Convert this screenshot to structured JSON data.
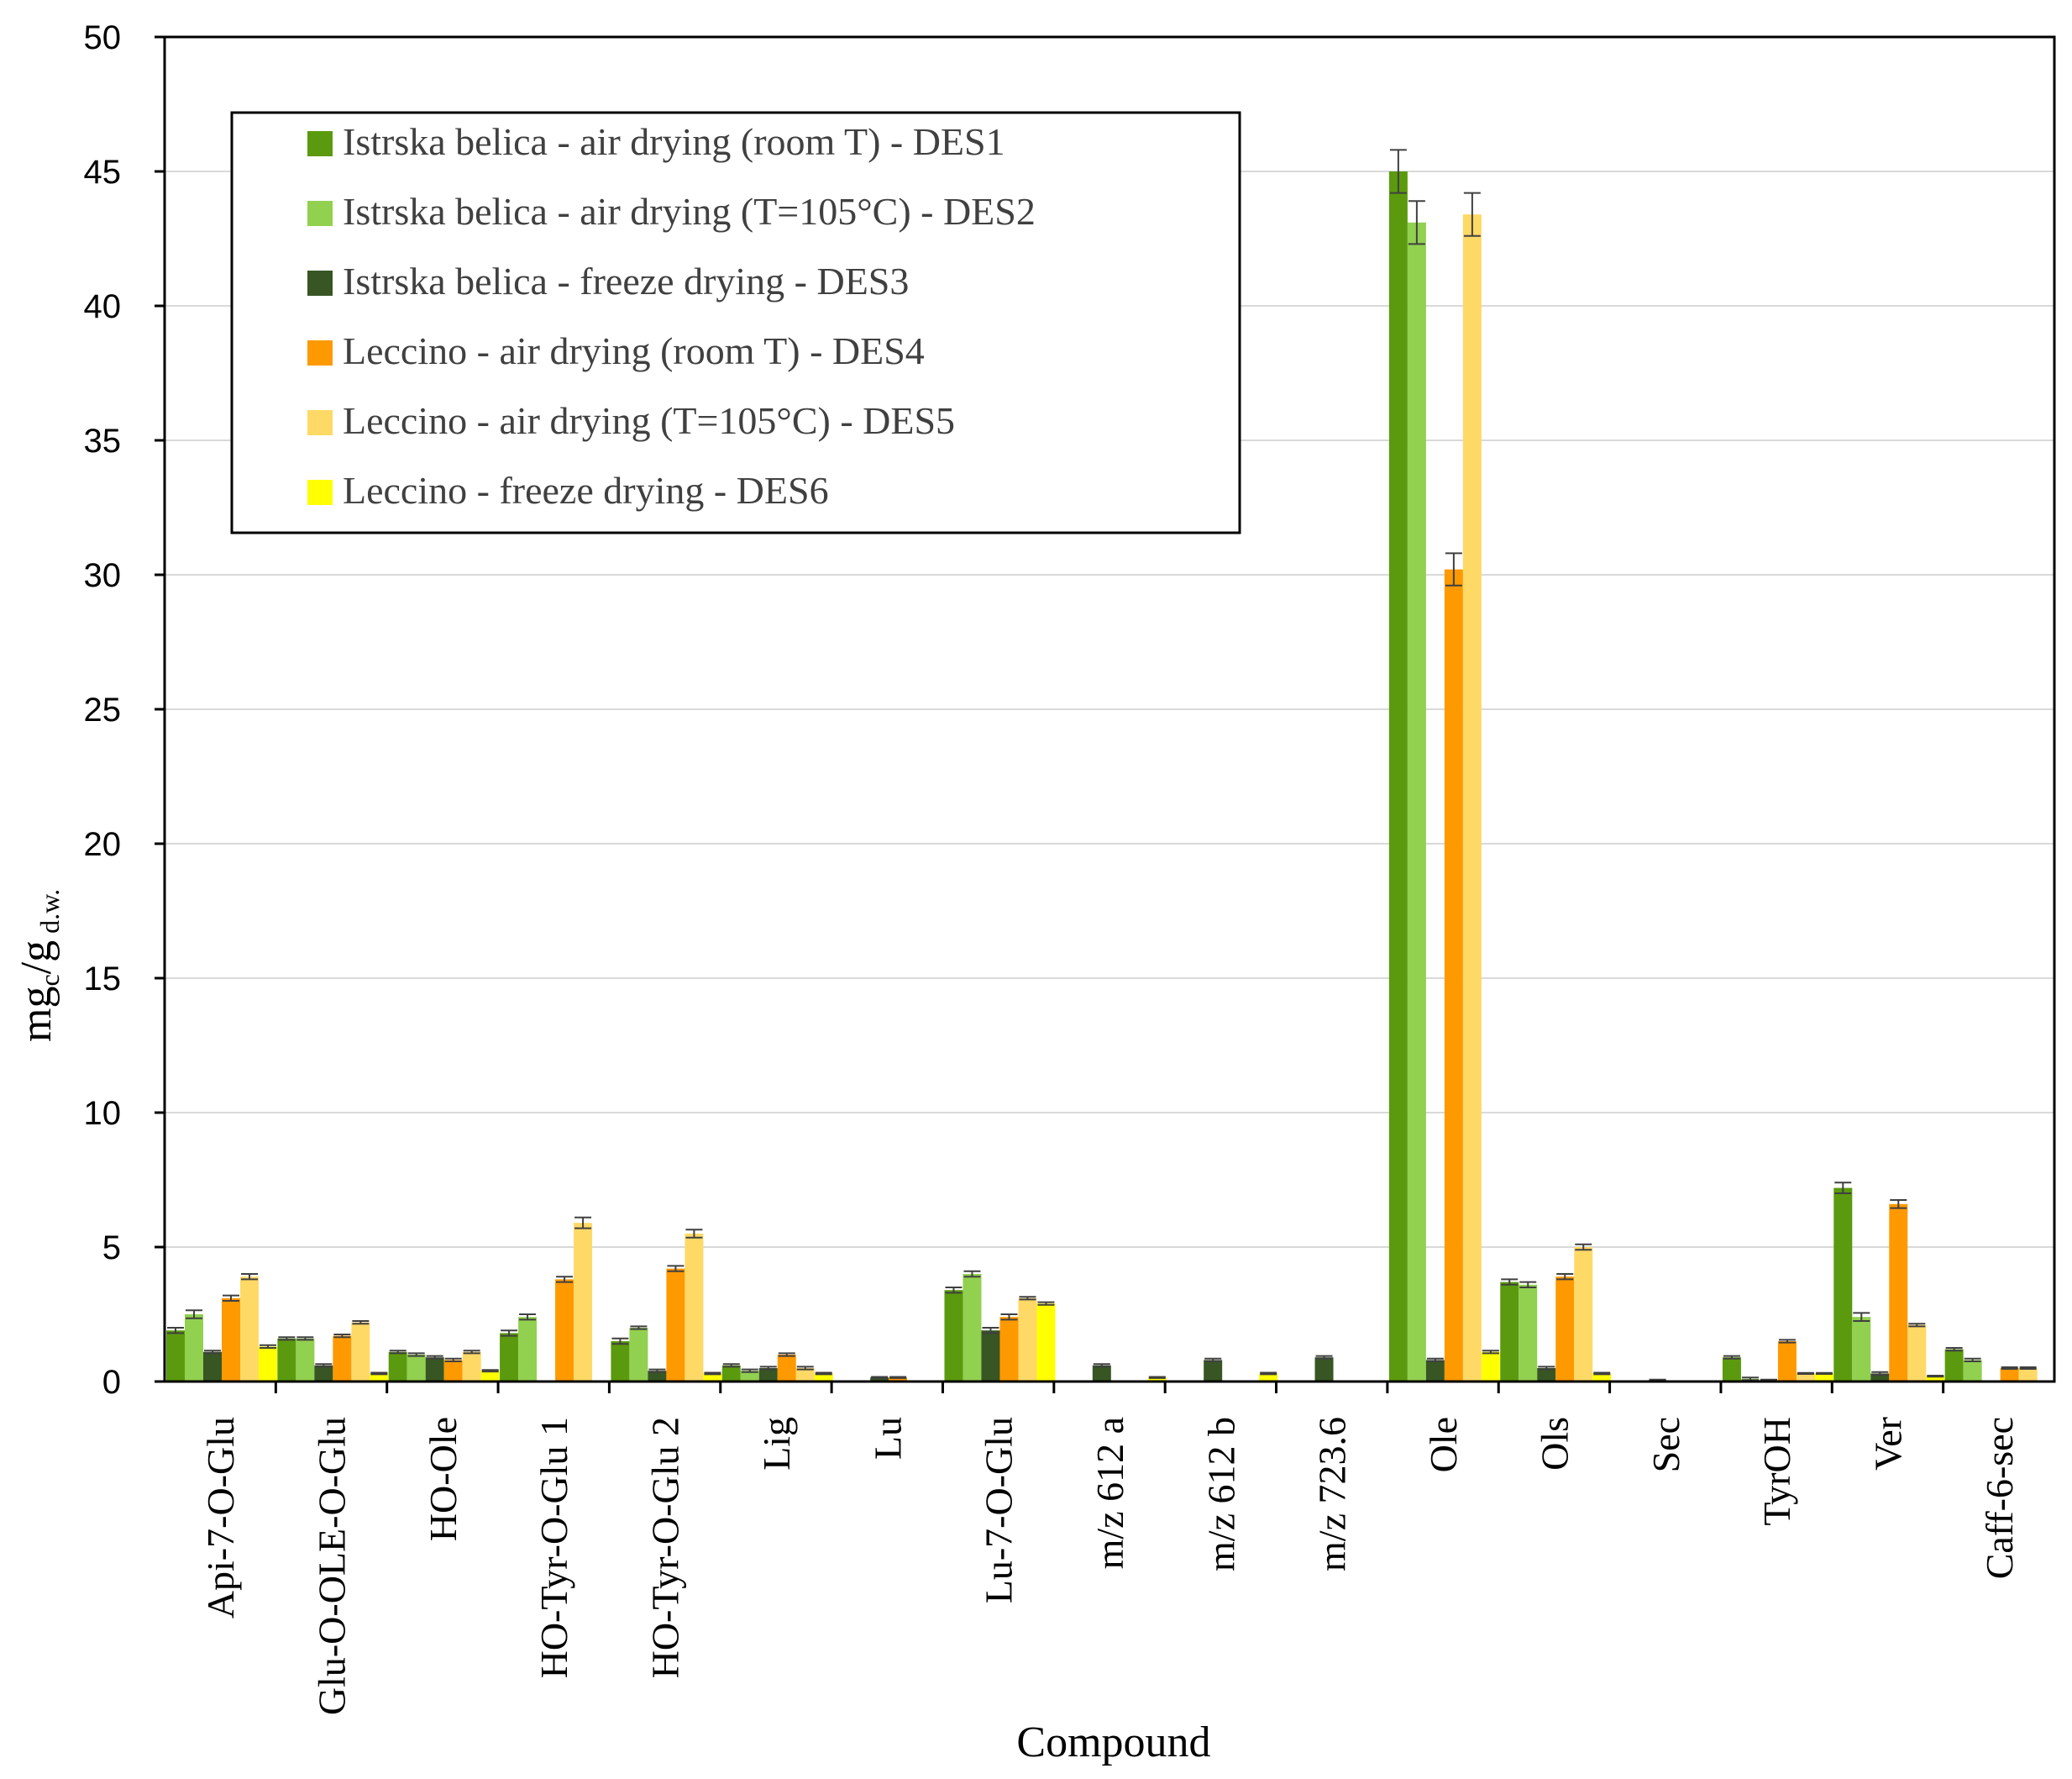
{
  "chart_data": {
    "type": "bar",
    "xlabel": "Compound",
    "ylabel_main": "mg",
    "ylabel_sub1": "c",
    "ylabel_mid": "/g",
    "ylabel_sub2": " d.w.",
    "ylim": [
      0,
      50
    ],
    "yticks": [
      "0",
      "5",
      "10",
      "15",
      "20",
      "25",
      "30",
      "35",
      "40",
      "45",
      "50"
    ],
    "grid": true,
    "legend_position": "top-left",
    "categories": [
      "Api-7-O-Glu",
      "Glu-O-OLE-O-Glu",
      "HO-Ole",
      "HO-Tyr-O-Glu 1",
      "HO-Tyr-O-Glu 2",
      "Lig",
      "Lu",
      "Lu-7-O-Glu",
      "m/z 612 a",
      "m/z 612 b",
      "m/z 723.6",
      "Ole",
      "Ols",
      "Sec",
      "TyrOH",
      "Ver",
      "Caff-6-sec"
    ],
    "series": [
      {
        "name": "Istrska belica - air drying (room T) - DES1",
        "color": "#5b9a0e",
        "values": [
          1.9,
          1.6,
          1.1,
          1.8,
          1.5,
          0.6,
          0,
          3.4,
          0,
          0,
          0,
          45.0,
          3.7,
          0,
          0.9,
          7.2,
          1.2
        ],
        "errors": [
          0.1,
          0.05,
          0.05,
          0.1,
          0.1,
          0.05,
          0,
          0.1,
          0,
          0,
          0,
          0.8,
          0.1,
          0,
          0.05,
          0.2,
          0.05
        ]
      },
      {
        "name": "Istrska belica - air drying (T=105°C) - DES2",
        "color": "#92d050",
        "values": [
          2.5,
          1.6,
          1.0,
          2.4,
          2.0,
          0.4,
          0,
          4.0,
          0,
          0,
          0,
          43.1,
          3.6,
          0,
          0.1,
          2.4,
          0.8
        ],
        "errors": [
          0.15,
          0.05,
          0.05,
          0.1,
          0.05,
          0.05,
          0,
          0.1,
          0,
          0,
          0,
          0.8,
          0.1,
          0,
          0.05,
          0.15,
          0.05
        ]
      },
      {
        "name": "Istrska belica - freeze drying - DES3",
        "color": "#375623",
        "values": [
          1.1,
          0.6,
          0.9,
          0,
          0.4,
          0.5,
          0.15,
          1.9,
          0.6,
          0.8,
          0.9,
          0.8,
          0.5,
          0.05,
          0.05,
          0.3,
          0
        ],
        "errors": [
          0.05,
          0.05,
          0.05,
          0,
          0.05,
          0.05,
          0.02,
          0.1,
          0.05,
          0.05,
          0.05,
          0.05,
          0.05,
          0.02,
          0.02,
          0.05,
          0
        ]
      },
      {
        "name": "Leccino - air drying (room T) - DES4",
        "color": "#ff9900",
        "values": [
          3.1,
          1.7,
          0.8,
          3.8,
          4.2,
          1.0,
          0.15,
          2.4,
          0,
          0,
          0,
          30.2,
          3.9,
          0,
          1.5,
          6.6,
          0.5
        ],
        "errors": [
          0.1,
          0.05,
          0.05,
          0.1,
          0.1,
          0.05,
          0.02,
          0.1,
          0,
          0,
          0,
          0.6,
          0.1,
          0,
          0.05,
          0.15,
          0.03
        ]
      },
      {
        "name": "Leccino - air drying (T=105°C) - DES5",
        "color": "#ffd966",
        "values": [
          3.9,
          2.2,
          1.1,
          5.9,
          5.5,
          0.5,
          0,
          3.1,
          0,
          0,
          0,
          43.4,
          5.0,
          0,
          0.3,
          2.1,
          0.5
        ],
        "errors": [
          0.1,
          0.05,
          0.05,
          0.2,
          0.15,
          0.05,
          0,
          0.05,
          0,
          0,
          0,
          0.8,
          0.1,
          0,
          0.02,
          0.05,
          0.03
        ]
      },
      {
        "name": "Leccino - freeze drying - DES6",
        "color": "#ffff00",
        "values": [
          1.3,
          0.3,
          0.4,
          0,
          0.3,
          0.3,
          0,
          2.9,
          0.15,
          0.3,
          0,
          1.1,
          0.3,
          0,
          0.3,
          0.2,
          0
        ],
        "errors": [
          0.05,
          0.03,
          0.03,
          0,
          0.03,
          0.03,
          0,
          0.05,
          0.02,
          0.03,
          0,
          0.05,
          0.03,
          0,
          0.02,
          0.02,
          0
        ]
      }
    ]
  }
}
